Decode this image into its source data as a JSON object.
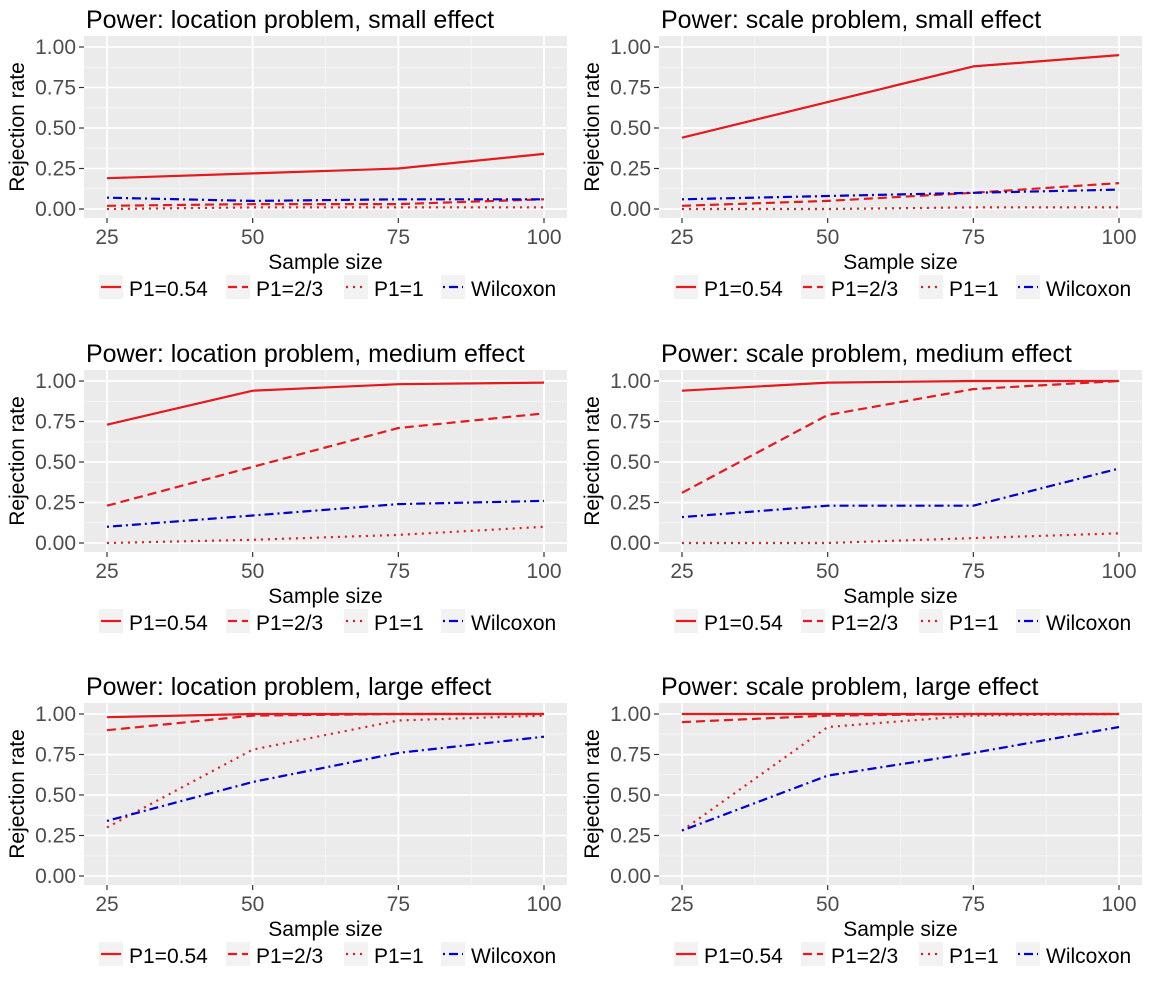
{
  "colors": {
    "panel_bg": "#EBEBEB",
    "grid_major": "#FFFFFF",
    "grid_minor": "#F5F5F5",
    "tick_text": "#4D4D4D",
    "legend_key_bg": "#F2F2F2"
  },
  "chart_data": [
    {
      "type": "line",
      "title": "Power: location problem, small effect",
      "xlabel": "Sample size",
      "ylabel": "Rejection rate",
      "x": [
        25,
        50,
        75,
        100
      ],
      "xlim": [
        25,
        100
      ],
      "ylim": [
        0,
        1
      ],
      "xticks": [
        25,
        50,
        75,
        100
      ],
      "yticks": [
        0,
        0.25,
        0.5,
        0.75,
        1
      ],
      "ytick_labels": [
        "0.00",
        "0.25",
        "0.50",
        "0.75",
        "1.00"
      ],
      "legend_position": "bottom",
      "series": [
        {
          "name": "P1=0.54",
          "color": "#E41A1C",
          "linetype": "solid",
          "values": [
            0.19,
            0.22,
            0.25,
            0.34
          ]
        },
        {
          "name": "P1=2/3",
          "color": "#E41A1C",
          "linetype": "dashed",
          "values": [
            0.02,
            0.03,
            0.03,
            0.06
          ]
        },
        {
          "name": "P1=1",
          "color": "#E41A1C",
          "linetype": "dotted",
          "values": [
            0.0,
            0.01,
            0.01,
            0.01
          ]
        },
        {
          "name": "Wilcoxon",
          "color": "#0000CC",
          "linetype": "dotdash",
          "values": [
            0.07,
            0.05,
            0.06,
            0.06
          ]
        }
      ]
    },
    {
      "type": "line",
      "title": "Power: scale problem, small effect",
      "xlabel": "Sample size",
      "ylabel": "Rejection rate",
      "x": [
        25,
        50,
        75,
        100
      ],
      "xlim": [
        25,
        100
      ],
      "ylim": [
        0,
        1
      ],
      "xticks": [
        25,
        50,
        75,
        100
      ],
      "yticks": [
        0,
        0.25,
        0.5,
        0.75,
        1
      ],
      "ytick_labels": [
        "0.00",
        "0.25",
        "0.50",
        "0.75",
        "1.00"
      ],
      "legend_position": "bottom",
      "series": [
        {
          "name": "P1=0.54",
          "color": "#E41A1C",
          "linetype": "solid",
          "values": [
            0.44,
            0.66,
            0.88,
            0.95
          ]
        },
        {
          "name": "P1=2/3",
          "color": "#E41A1C",
          "linetype": "dashed",
          "values": [
            0.02,
            0.05,
            0.1,
            0.16
          ]
        },
        {
          "name": "P1=1",
          "color": "#E41A1C",
          "linetype": "dotted",
          "values": [
            0.0,
            0.0,
            0.01,
            0.01
          ]
        },
        {
          "name": "Wilcoxon",
          "color": "#0000CC",
          "linetype": "dotdash",
          "values": [
            0.06,
            0.08,
            0.1,
            0.12
          ]
        }
      ]
    },
    {
      "type": "line",
      "title": "Power: location problem, medium effect",
      "xlabel": "Sample size",
      "ylabel": "Rejection rate",
      "x": [
        25,
        50,
        75,
        100
      ],
      "xlim": [
        25,
        100
      ],
      "ylim": [
        0,
        1
      ],
      "xticks": [
        25,
        50,
        75,
        100
      ],
      "yticks": [
        0,
        0.25,
        0.5,
        0.75,
        1
      ],
      "ytick_labels": [
        "0.00",
        "0.25",
        "0.50",
        "0.75",
        "1.00"
      ],
      "legend_position": "bottom",
      "series": [
        {
          "name": "P1=0.54",
          "color": "#E41A1C",
          "linetype": "solid",
          "values": [
            0.73,
            0.94,
            0.98,
            0.99
          ]
        },
        {
          "name": "P1=2/3",
          "color": "#E41A1C",
          "linetype": "dashed",
          "values": [
            0.23,
            0.47,
            0.71,
            0.8
          ]
        },
        {
          "name": "P1=1",
          "color": "#E41A1C",
          "linetype": "dotted",
          "values": [
            0.0,
            0.02,
            0.05,
            0.1
          ]
        },
        {
          "name": "Wilcoxon",
          "color": "#0000CC",
          "linetype": "dotdash",
          "values": [
            0.1,
            0.17,
            0.24,
            0.26
          ]
        }
      ]
    },
    {
      "type": "line",
      "title": "Power: scale problem, medium effect",
      "xlabel": "Sample size",
      "ylabel": "Rejection rate",
      "x": [
        25,
        50,
        75,
        100
      ],
      "xlim": [
        25,
        100
      ],
      "ylim": [
        0,
        1
      ],
      "xticks": [
        25,
        50,
        75,
        100
      ],
      "yticks": [
        0,
        0.25,
        0.5,
        0.75,
        1
      ],
      "ytick_labels": [
        "0.00",
        "0.25",
        "0.50",
        "0.75",
        "1.00"
      ],
      "legend_position": "bottom",
      "series": [
        {
          "name": "P1=0.54",
          "color": "#E41A1C",
          "linetype": "solid",
          "values": [
            0.94,
            0.99,
            1.0,
            1.0
          ]
        },
        {
          "name": "P1=2/3",
          "color": "#E41A1C",
          "linetype": "dashed",
          "values": [
            0.31,
            0.79,
            0.95,
            1.0
          ]
        },
        {
          "name": "P1=1",
          "color": "#E41A1C",
          "linetype": "dotted",
          "values": [
            0.0,
            0.0,
            0.03,
            0.06
          ]
        },
        {
          "name": "Wilcoxon",
          "color": "#0000CC",
          "linetype": "dotdash",
          "values": [
            0.16,
            0.23,
            0.23,
            0.46
          ]
        }
      ]
    },
    {
      "type": "line",
      "title": "Power: location problem, large effect",
      "xlabel": "Sample size",
      "ylabel": "Rejection rate",
      "x": [
        25,
        50,
        75,
        100
      ],
      "xlim": [
        25,
        100
      ],
      "ylim": [
        0,
        1
      ],
      "xticks": [
        25,
        50,
        75,
        100
      ],
      "yticks": [
        0,
        0.25,
        0.5,
        0.75,
        1
      ],
      "ytick_labels": [
        "0.00",
        "0.25",
        "0.50",
        "0.75",
        "1.00"
      ],
      "legend_position": "bottom",
      "series": [
        {
          "name": "P1=0.54",
          "color": "#E41A1C",
          "linetype": "solid",
          "values": [
            0.98,
            1.0,
            1.0,
            1.0
          ]
        },
        {
          "name": "P1=2/3",
          "color": "#E41A1C",
          "linetype": "dashed",
          "values": [
            0.9,
            0.99,
            1.0,
            1.0
          ]
        },
        {
          "name": "P1=1",
          "color": "#E41A1C",
          "linetype": "dotted",
          "values": [
            0.3,
            0.78,
            0.96,
            0.99
          ]
        },
        {
          "name": "Wilcoxon",
          "color": "#0000CC",
          "linetype": "dotdash",
          "values": [
            0.34,
            0.58,
            0.76,
            0.86
          ]
        }
      ]
    },
    {
      "type": "line",
      "title": "Power: scale problem, large effect",
      "xlabel": "Sample size",
      "ylabel": "Rejection rate",
      "x": [
        25,
        50,
        75,
        100
      ],
      "xlim": [
        25,
        100
      ],
      "ylim": [
        0,
        1
      ],
      "xticks": [
        25,
        50,
        75,
        100
      ],
      "yticks": [
        0,
        0.25,
        0.5,
        0.75,
        1
      ],
      "ytick_labels": [
        "0.00",
        "0.25",
        "0.50",
        "0.75",
        "1.00"
      ],
      "legend_position": "bottom",
      "series": [
        {
          "name": "P1=0.54",
          "color": "#E41A1C",
          "linetype": "solid",
          "values": [
            1.0,
            1.0,
            1.0,
            1.0
          ]
        },
        {
          "name": "P1=2/3",
          "color": "#E41A1C",
          "linetype": "dashed",
          "values": [
            0.95,
            0.99,
            1.0,
            1.0
          ]
        },
        {
          "name": "P1=1",
          "color": "#E41A1C",
          "linetype": "dotted",
          "values": [
            0.28,
            0.92,
            0.99,
            1.0
          ]
        },
        {
          "name": "Wilcoxon",
          "color": "#0000CC",
          "linetype": "dotdash",
          "values": [
            0.28,
            0.62,
            0.76,
            0.92
          ]
        }
      ]
    }
  ]
}
